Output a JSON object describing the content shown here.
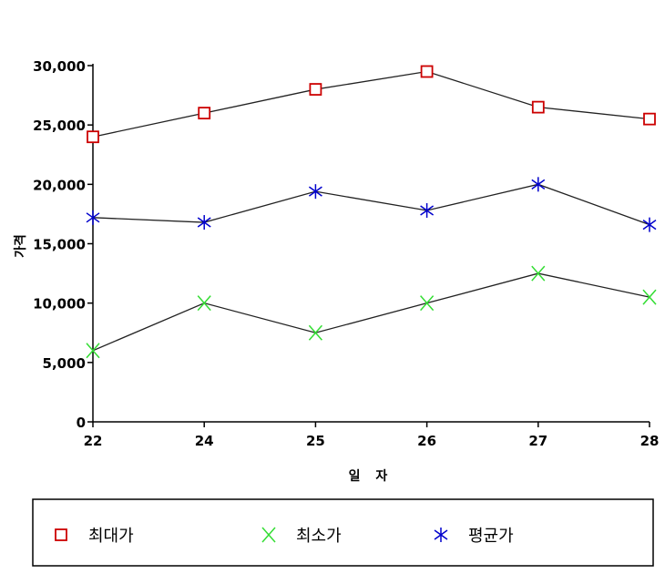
{
  "chart_data": {
    "type": "line",
    "title": "",
    "xlabel": "일 자",
    "ylabel": "가격",
    "categories": [
      "22",
      "24",
      "25",
      "26",
      "27",
      "28"
    ],
    "ylim": [
      0,
      30000
    ],
    "yticks": [
      "0",
      "5,000",
      "10,000",
      "15,000",
      "20,000",
      "25,000",
      "30,000"
    ],
    "grid": false,
    "legend_position": "bottom",
    "series": [
      {
        "name": "최대가",
        "marker": "square",
        "color": "#cc0000",
        "values": [
          24000,
          26000,
          28000,
          29500,
          26500,
          25500
        ]
      },
      {
        "name": "최소가",
        "marker": "x",
        "color": "#33dd33",
        "values": [
          6000,
          10000,
          7500,
          10000,
          12500,
          10500
        ]
      },
      {
        "name": "평균가",
        "marker": "asterisk",
        "color": "#0000cc",
        "values": [
          17200,
          16800,
          19400,
          17800,
          20000,
          16600
        ]
      }
    ]
  }
}
